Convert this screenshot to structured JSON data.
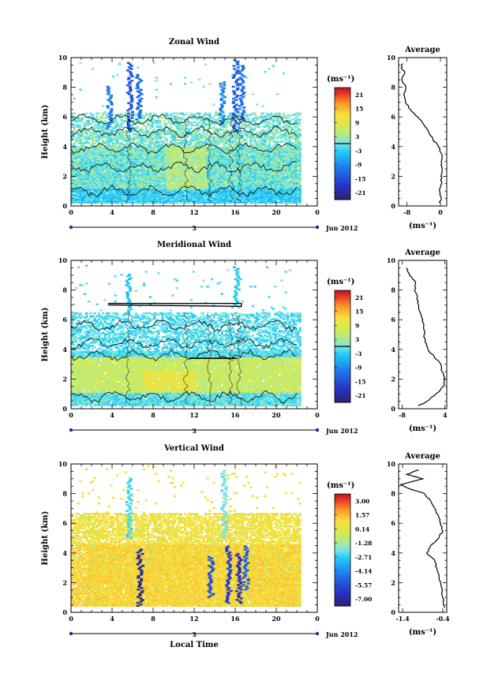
{
  "chart_data": [
    {
      "type": "heatmap",
      "title": "Zonal Wind",
      "ylabel": "Height (km)",
      "xticks": [
        "0",
        "4",
        "8",
        "12",
        "16",
        "20",
        "0"
      ],
      "yticks": [
        "0",
        "2",
        "4",
        "6",
        "8",
        "10"
      ],
      "xlim": [
        0,
        24
      ],
      "ylim": [
        0,
        10
      ],
      "date_marker": "3",
      "date_label": "Jun 2012",
      "colorbar": {
        "unit_label": "(ms⁻¹)",
        "ticks": [
          "21",
          "15",
          "9",
          "3",
          "-3",
          "-9",
          "-15",
          "-21"
        ],
        "range": [
          -24,
          24
        ]
      },
      "streaks": [
        {
          "t": 5.6,
          "top": 9.6,
          "bottom": 5.0,
          "value": -14
        },
        {
          "t": 6.5,
          "top": 8.8,
          "bottom": 5.8,
          "value": -12
        },
        {
          "t": 3.6,
          "top": 8.0,
          "bottom": 5.2,
          "value": -10
        },
        {
          "t": 14.6,
          "top": 8.3,
          "bottom": 5.5,
          "value": -10
        },
        {
          "t": 15.9,
          "top": 9.8,
          "bottom": 5.0,
          "value": -13
        },
        {
          "t": 16.5,
          "top": 9.4,
          "bottom": 5.6,
          "value": -11
        }
      ],
      "average": {
        "title": "Average",
        "xlabel": "(ms⁻¹)",
        "xticks": [
          "-8",
          "0"
        ],
        "xlim": [
          -10,
          1.5
        ],
        "height_km": [
          0.2,
          0.5,
          1.0,
          1.5,
          2.0,
          2.5,
          3.0,
          3.5,
          4.0,
          4.5,
          5.0,
          5.5,
          6.0,
          6.5,
          7.0,
          7.5,
          8.0,
          8.5,
          9.0,
          9.3,
          9.6
        ],
        "wind": [
          -0.3,
          0.2,
          -0.2,
          0.3,
          0.1,
          0.4,
          0.2,
          0.3,
          -0.5,
          -1.8,
          -2.8,
          -4.0,
          -5.4,
          -7.2,
          -8.4,
          -8.8,
          -8.3,
          -9.2,
          -8.5,
          -9.4,
          -9.0
        ]
      }
    },
    {
      "type": "heatmap",
      "title": "Meridional Wind",
      "ylabel": "Height (km)",
      "xticks": [
        "0",
        "4",
        "8",
        "12",
        "16",
        "20",
        "0"
      ],
      "yticks": [
        "0",
        "2",
        "4",
        "6",
        "8",
        "10"
      ],
      "xlim": [
        0,
        24
      ],
      "ylim": [
        0,
        10
      ],
      "date_marker": "3",
      "date_label": "Jun 2012",
      "colorbar": {
        "unit_label": "(ms⁻¹)",
        "ticks": [
          "21",
          "15",
          "9",
          "3",
          "-3",
          "-9",
          "-15",
          "-21"
        ],
        "range": [
          -24,
          24
        ]
      },
      "streaks": [
        {
          "t": 5.5,
          "top": 9.0,
          "bottom": 6.5,
          "value": -4
        },
        {
          "t": 16.0,
          "top": 9.5,
          "bottom": 6.8,
          "value": -4
        }
      ],
      "average": {
        "title": "Average",
        "xlabel": "(ms⁻¹)",
        "xticks": [
          "-8",
          "4"
        ],
        "xlim": [
          -9,
          4.5
        ],
        "height_km": [
          0.2,
          0.5,
          1.0,
          1.5,
          2.0,
          2.5,
          3.0,
          3.5,
          4.0,
          4.5,
          5.0,
          5.5,
          6.0,
          6.5,
          7.0,
          7.5,
          8.0,
          8.5,
          9.0,
          9.5
        ],
        "wind": [
          -3.5,
          -1.0,
          1.5,
          3.5,
          4.0,
          3.2,
          2.8,
          1.0,
          -0.8,
          -1.6,
          -1.8,
          -2.0,
          -2.2,
          -3.0,
          -3.4,
          -3.8,
          -4.5,
          -4.2,
          -6.0,
          -6.8
        ]
      }
    },
    {
      "type": "heatmap",
      "title": "Vertical Wind",
      "ylabel": "Height (km)",
      "xlabel": "Local Time",
      "xticks": [
        "0",
        "4",
        "8",
        "12",
        "16",
        "20",
        "0"
      ],
      "yticks": [
        "0",
        "2",
        "4",
        "6",
        "8",
        "10"
      ],
      "xlim": [
        0,
        24
      ],
      "ylim": [
        0,
        10
      ],
      "date_marker": "3",
      "date_label": "Jun 2012",
      "colorbar": {
        "unit_label": "(ms⁻¹)",
        "ticks": [
          "3.00",
          "1.57",
          "0.14",
          "-1.28",
          "-2.71",
          "-4.14",
          "-5.57",
          "-7.00"
        ],
        "range": [
          -7.7,
          3.7
        ]
      },
      "streaks": [
        {
          "t": 6.6,
          "top": 4.3,
          "bottom": 0.4,
          "value": -7.0
        },
        {
          "t": 13.5,
          "top": 3.8,
          "bottom": 1.0,
          "value": -5.5
        },
        {
          "t": 15.2,
          "top": 4.5,
          "bottom": 0.6,
          "value": -6.0
        },
        {
          "t": 16.2,
          "top": 4.0,
          "bottom": 0.6,
          "value": -6.5
        },
        {
          "t": 16.9,
          "top": 4.5,
          "bottom": 1.5,
          "value": -5.0
        },
        {
          "t": 5.5,
          "top": 9.0,
          "bottom": 5.0,
          "value": -2.5
        },
        {
          "t": 14.8,
          "top": 9.5,
          "bottom": 5.0,
          "value": -2.0
        }
      ],
      "average": {
        "title": "Average",
        "xlabel": "(ms⁻¹)",
        "xticks": [
          "-1.4",
          "-0.4"
        ],
        "xlim": [
          -1.5,
          -0.3
        ],
        "height_km": [
          0.3,
          1.0,
          2.0,
          3.0,
          3.5,
          4.0,
          4.5,
          5.0,
          5.5,
          6.0,
          6.5,
          7.0,
          7.5,
          8.0,
          8.3,
          8.6,
          9.0,
          9.3,
          9.6
        ],
        "wind": [
          -0.35,
          -0.4,
          -0.45,
          -0.55,
          -0.6,
          -0.8,
          -0.7,
          -0.5,
          -0.4,
          -0.45,
          -0.5,
          -0.6,
          -0.7,
          -0.85,
          -1.2,
          -1.45,
          -0.9,
          -1.3,
          -1.0
        ]
      }
    }
  ]
}
